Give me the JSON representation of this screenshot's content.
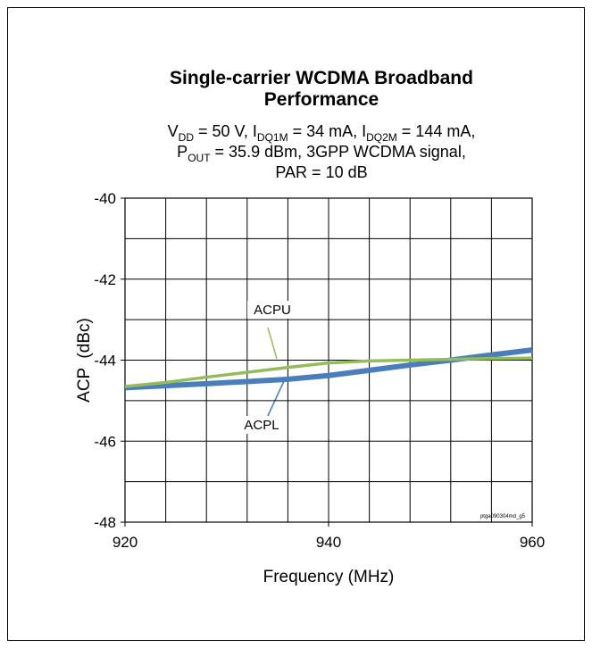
{
  "chart_data": {
    "type": "line",
    "title": [
      "Single-carrier WCDMA Broadband",
      "Performance"
    ],
    "subtitle": [
      [
        "V",
        "DD",
        " = 50 V, I",
        "DQ1M",
        " = 34 mA, I",
        "DQ2M",
        " = 144 mA,"
      ],
      [
        "P",
        "OUT",
        " = 35.9 dBm, 3GPP WCDMA signal,"
      ],
      [
        "PAR = 10 dB"
      ]
    ],
    "x_label": "Frequency (MHz)",
    "y_label": "ACP  (dBc)",
    "x": [
      920,
      924,
      928,
      932,
      936,
      940,
      944,
      948,
      952,
      956,
      960
    ],
    "series": [
      {
        "name": "ACPU",
        "color": "#94bc5a",
        "values": [
          -44.65,
          -44.55,
          -44.42,
          -44.3,
          -44.18,
          -44.07,
          -44.02,
          -44.0,
          -43.98,
          -43.96,
          -43.95
        ]
      },
      {
        "name": "ACPL",
        "color": "#4a7ebb",
        "values": [
          -44.68,
          -44.63,
          -44.58,
          -44.53,
          -44.47,
          -44.38,
          -44.25,
          -44.12,
          -44.0,
          -43.87,
          -43.75
        ]
      }
    ],
    "xlim": [
      920,
      960
    ],
    "ylim": [
      -48,
      -40
    ],
    "xticks": [
      920,
      940,
      960
    ],
    "yticks": [
      -40,
      -42,
      -44,
      -46,
      -48
    ],
    "xgrid": [
      924,
      928,
      932,
      936,
      940,
      944,
      948,
      952,
      956
    ],
    "ygrid": [
      -41,
      -42,
      -43,
      -44,
      -45,
      -46,
      -47
    ],
    "grid": true,
    "footnote": "ptga090304md_g5"
  }
}
